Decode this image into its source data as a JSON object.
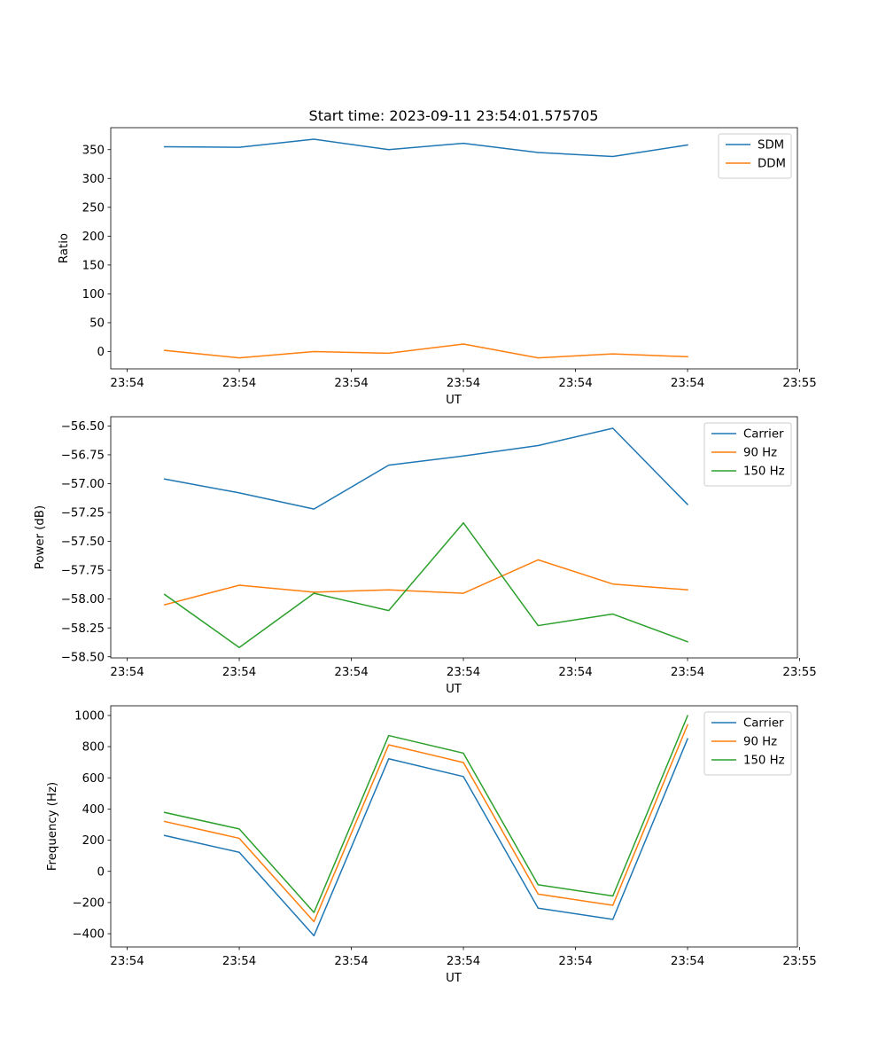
{
  "figure_title": "Start time: 2023-09-11 23:54:01.575705",
  "chart_data": [
    {
      "type": "line",
      "title": "Start time: 2023-09-11 23:54:01.575705",
      "xlabel": "UT",
      "ylabel": "Ratio",
      "x": [
        1,
        2,
        3,
        4,
        5,
        6,
        7,
        8
      ],
      "xlim": [
        0.28,
        9.47
      ],
      "xticks": [
        0.5,
        2.0,
        3.5,
        5.0,
        6.5,
        8.0,
        9.5
      ],
      "xtick_labels": [
        "23:54",
        "23:54",
        "23:54",
        "23:54",
        "23:54",
        "23:54",
        "23:55"
      ],
      "ylim": [
        -30,
        388
      ],
      "yticks": [
        0,
        50,
        100,
        150,
        200,
        250,
        300,
        350
      ],
      "ytick_labels": [
        "0",
        "50",
        "100",
        "150",
        "200",
        "250",
        "300",
        "350"
      ],
      "legend_position": "upper-right",
      "series": [
        {
          "name": "SDM",
          "color": "#1f77b4",
          "values": [
            355,
            354,
            368,
            350,
            361,
            345,
            338,
            358
          ]
        },
        {
          "name": "DDM",
          "color": "#ff7f0e",
          "values": [
            2,
            -11,
            0,
            -3,
            13,
            -11,
            -4,
            -9
          ]
        }
      ]
    },
    {
      "type": "line",
      "title": "",
      "xlabel": "UT",
      "ylabel": "Power (dB)",
      "x": [
        1,
        2,
        3,
        4,
        5,
        6,
        7,
        8
      ],
      "xlim": [
        0.28,
        9.47
      ],
      "xticks": [
        0.5,
        2.0,
        3.5,
        5.0,
        6.5,
        8.0,
        9.5
      ],
      "xtick_labels": [
        "23:54",
        "23:54",
        "23:54",
        "23:54",
        "23:54",
        "23:54",
        "23:55"
      ],
      "ylim": [
        -58.51,
        -56.42
      ],
      "yticks": [
        -58.5,
        -58.25,
        -58.0,
        -57.75,
        -57.5,
        -57.25,
        -57.0,
        -56.75,
        -56.5
      ],
      "ytick_labels": [
        "−58.50",
        "−58.25",
        "−58.00",
        "−57.75",
        "−57.50",
        "−57.25",
        "−57.00",
        "−56.75",
        "−56.50"
      ],
      "legend_position": "upper-right",
      "series": [
        {
          "name": "Carrier",
          "color": "#1f77b4",
          "values": [
            -56.96,
            -57.08,
            -57.22,
            -56.84,
            -56.76,
            -56.67,
            -56.52,
            -57.18
          ]
        },
        {
          "name": "90 Hz",
          "color": "#ff7f0e",
          "values": [
            -58.05,
            -57.88,
            -57.94,
            -57.92,
            -57.95,
            -57.66,
            -57.87,
            -57.92
          ]
        },
        {
          "name": "150 Hz",
          "color": "#2ca02c",
          "values": [
            -57.96,
            -58.42,
            -57.95,
            -58.1,
            -57.34,
            -58.23,
            -58.13,
            -58.37
          ]
        }
      ]
    },
    {
      "type": "line",
      "title": "",
      "xlabel": "UT",
      "ylabel": "Frequency (Hz)",
      "x": [
        1,
        2,
        3,
        4,
        5,
        6,
        7,
        8
      ],
      "xlim": [
        0.28,
        9.47
      ],
      "xticks": [
        0.5,
        2.0,
        3.5,
        5.0,
        6.5,
        8.0,
        9.5
      ],
      "xtick_labels": [
        "23:54",
        "23:54",
        "23:54",
        "23:54",
        "23:54",
        "23:54",
        "23:55"
      ],
      "ylim": [
        -485,
        1062
      ],
      "yticks": [
        -400,
        -200,
        0,
        200,
        400,
        600,
        800,
        1000
      ],
      "ytick_labels": [
        "−400",
        "−200",
        "0",
        "200",
        "400",
        "600",
        "800",
        "1000"
      ],
      "legend_position": "upper-right",
      "series": [
        {
          "name": "Carrier",
          "color": "#1f77b4",
          "values": [
            230,
            122,
            -413,
            722,
            608,
            -236,
            -308,
            850
          ]
        },
        {
          "name": "90 Hz",
          "color": "#ff7f0e",
          "values": [
            320,
            212,
            -323,
            812,
            698,
            -146,
            -218,
            940
          ]
        },
        {
          "name": "150 Hz",
          "color": "#2ca02c",
          "values": [
            378,
            272,
            -264,
            871,
            758,
            -86,
            -158,
            998
          ]
        }
      ]
    }
  ]
}
